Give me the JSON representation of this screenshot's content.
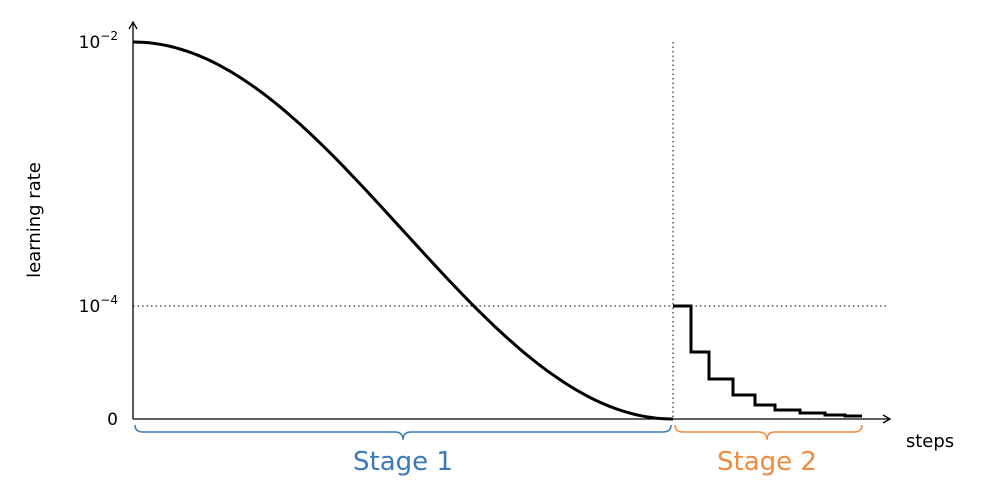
{
  "y_axis": {
    "label": "learning rate",
    "ticks": [
      {
        "base": "10",
        "exponent": "−2"
      },
      {
        "base": "10",
        "exponent": "−4"
      },
      {
        "base": "0"
      }
    ]
  },
  "x_axis": {
    "label": "steps"
  },
  "stages": [
    {
      "label": "Stage 1",
      "color": "#3a7ab8"
    },
    {
      "label": "Stage 2",
      "color": "#f08a3c"
    }
  ]
}
